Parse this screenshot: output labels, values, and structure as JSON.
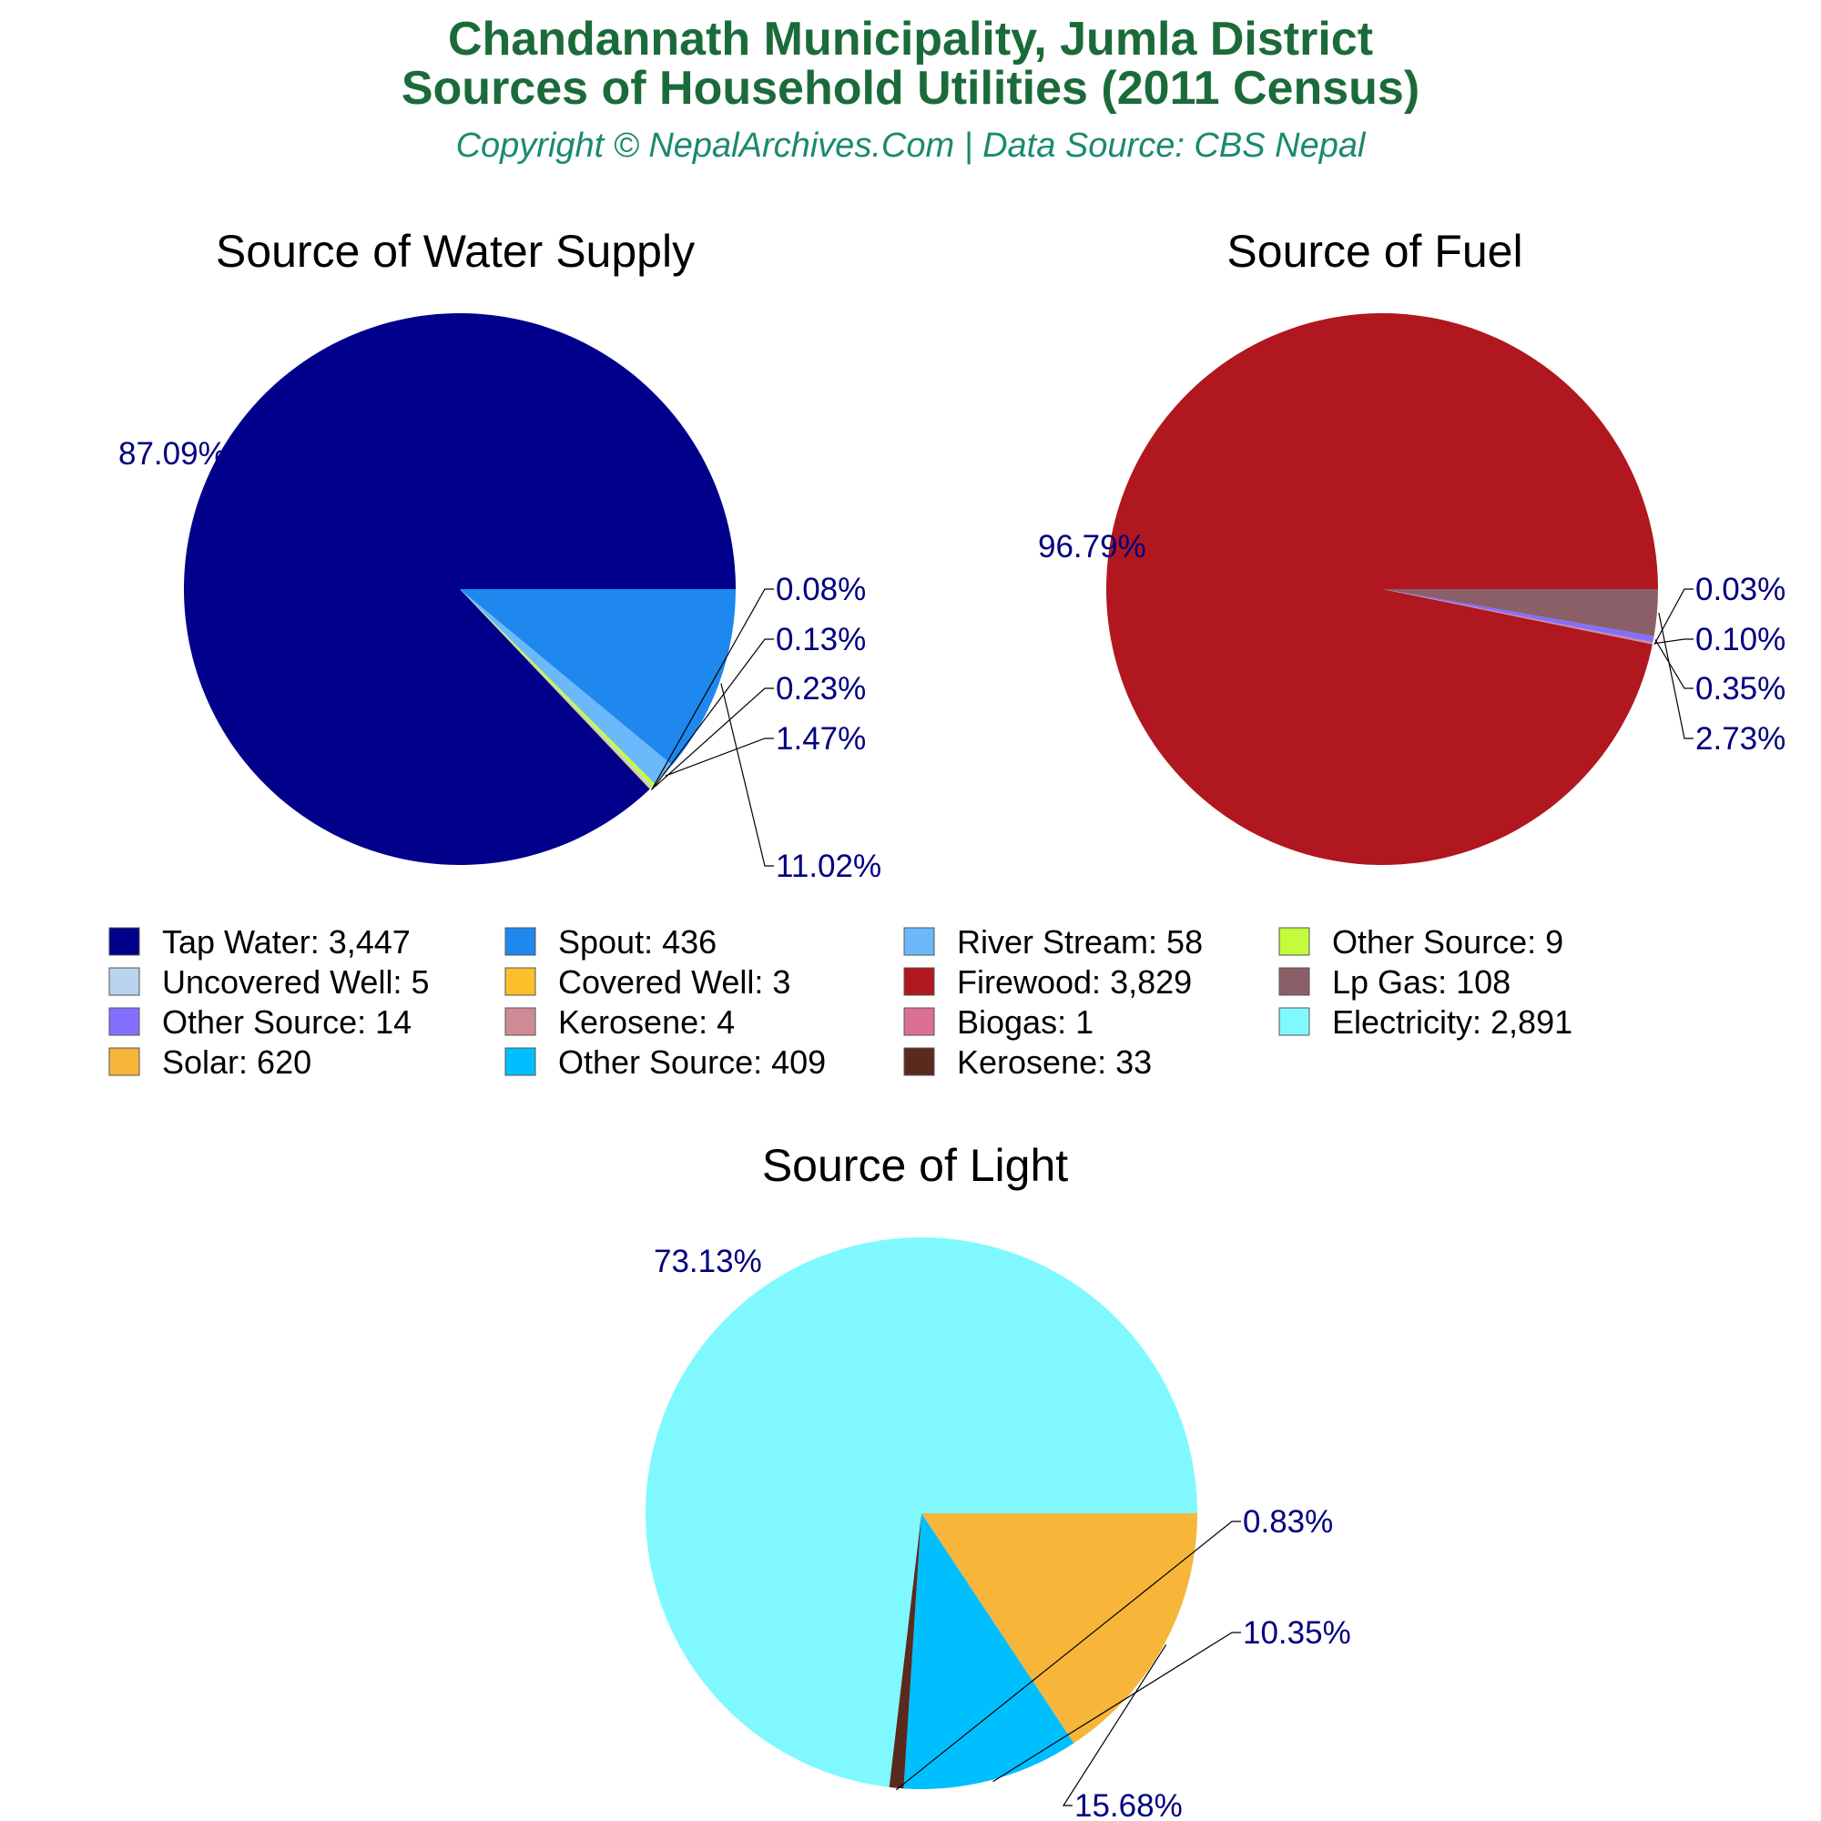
{
  "header": {
    "title_line1": "Chandannath Municipality, Jumla District",
    "title_line2": "Sources of Household Utilities (2011 Census)",
    "subtitle": "Copyright © NepalArchives.Com | Data Source: CBS Nepal"
  },
  "colors": {
    "title": "#1b6b3a",
    "subtitle": "#1a8a6e",
    "pct_label": "#00007f",
    "leader_line": "#000000"
  },
  "chart_data": [
    {
      "type": "pie",
      "title": "Source of Water Supply",
      "slices": [
        {
          "label": "Tap Water",
          "value": 3447,
          "percent": "87.09%",
          "color": "#00008b"
        },
        {
          "label": "Spout",
          "value": 436,
          "percent": "11.02%",
          "color": "#1e88ee"
        },
        {
          "label": "River Stream",
          "value": 58,
          "percent": "1.47%",
          "color": "#6bb8fb"
        },
        {
          "label": "Other Source",
          "value": 9,
          "percent": "0.23%",
          "color": "#c4fb3c"
        },
        {
          "label": "Uncovered Well",
          "value": 5,
          "percent": "0.13%",
          "color": "#b8d4ef"
        },
        {
          "label": "Covered Well",
          "value": 3,
          "percent": "0.08%",
          "color": "#fdc02c"
        }
      ]
    },
    {
      "type": "pie",
      "title": "Source of Fuel",
      "slices": [
        {
          "label": "Firewood",
          "value": 3829,
          "percent": "96.79%",
          "color": "#b0171f"
        },
        {
          "label": "Lp Gas",
          "value": 108,
          "percent": "2.73%",
          "color": "#8b5f67"
        },
        {
          "label": "Other Source",
          "value": 14,
          "percent": "0.35%",
          "color": "#836fff"
        },
        {
          "label": "Kerosene",
          "value": 4,
          "percent": "0.10%",
          "color": "#cd8c95"
        },
        {
          "label": "Biogas",
          "value": 1,
          "percent": "0.03%",
          "color": "#db7093"
        }
      ]
    },
    {
      "type": "pie",
      "title": "Source of Light",
      "slices": [
        {
          "label": "Electricity",
          "value": 2891,
          "percent": "73.13%",
          "color": "#7ff9ff"
        },
        {
          "label": "Solar",
          "value": 620,
          "percent": "15.68%",
          "color": "#f7b53a"
        },
        {
          "label": "Other Source",
          "value": 409,
          "percent": "10.35%",
          "color": "#00bfff"
        },
        {
          "label": "Kerosene",
          "value": 33,
          "percent": "0.83%",
          "color": "#5a2a1e"
        }
      ]
    }
  ],
  "legend": [
    {
      "text": "Tap Water: 3,447",
      "color": "#00008b"
    },
    {
      "text": "Spout: 436",
      "color": "#1e88ee"
    },
    {
      "text": "River Stream: 58",
      "color": "#6bb8fb"
    },
    {
      "text": "Other Source: 9",
      "color": "#c4fb3c"
    },
    {
      "text": "Uncovered Well: 5",
      "color": "#b8d4ef"
    },
    {
      "text": "Covered Well: 3",
      "color": "#fdc02c"
    },
    {
      "text": "Firewood: 3,829",
      "color": "#b0171f"
    },
    {
      "text": "Lp Gas: 108",
      "color": "#8b5f67"
    },
    {
      "text": "Other Source: 14",
      "color": "#836fff"
    },
    {
      "text": "Kerosene: 4",
      "color": "#cd8c95"
    },
    {
      "text": "Biogas: 1",
      "color": "#db7093"
    },
    {
      "text": "Electricity: 2,891",
      "color": "#7ff9ff"
    },
    {
      "text": "Solar: 620",
      "color": "#f7b53a"
    },
    {
      "text": "Other Source: 409",
      "color": "#00bfff"
    },
    {
      "text": "Kerosene: 33",
      "color": "#5a2a1e"
    }
  ]
}
